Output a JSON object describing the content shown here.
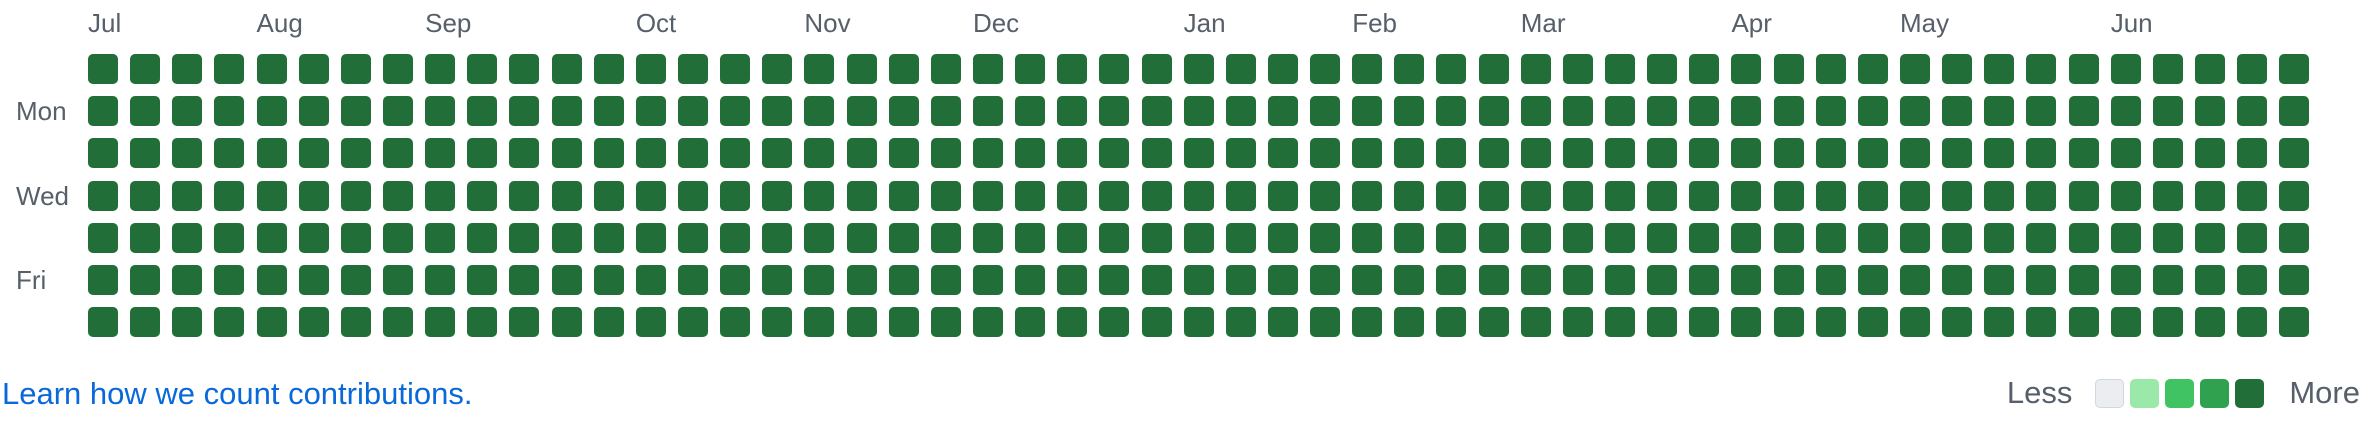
{
  "months": [
    "Jul",
    "Aug",
    "Sep",
    "Oct",
    "Nov",
    "Dec",
    "Jan",
    "Feb",
    "Mar",
    "Apr",
    "May",
    "Jun"
  ],
  "month_start_weeks": [
    0,
    4,
    8,
    13,
    17,
    21,
    26,
    30,
    34,
    39,
    43,
    48
  ],
  "day_labels": [
    {
      "row": 1,
      "label": "Mon"
    },
    {
      "row": 3,
      "label": "Wed"
    },
    {
      "row": 5,
      "label": "Fri"
    }
  ],
  "weeks": 53,
  "days_per_week": 7,
  "cell_level": 4,
  "level_colors": [
    "#ebedf0",
    "#9be9a8",
    "#40c463",
    "#30a14e",
    "#216e39"
  ],
  "footer": {
    "learn_link": "Learn how we count contributions."
  },
  "legend": {
    "less": "Less",
    "more": "More"
  }
}
